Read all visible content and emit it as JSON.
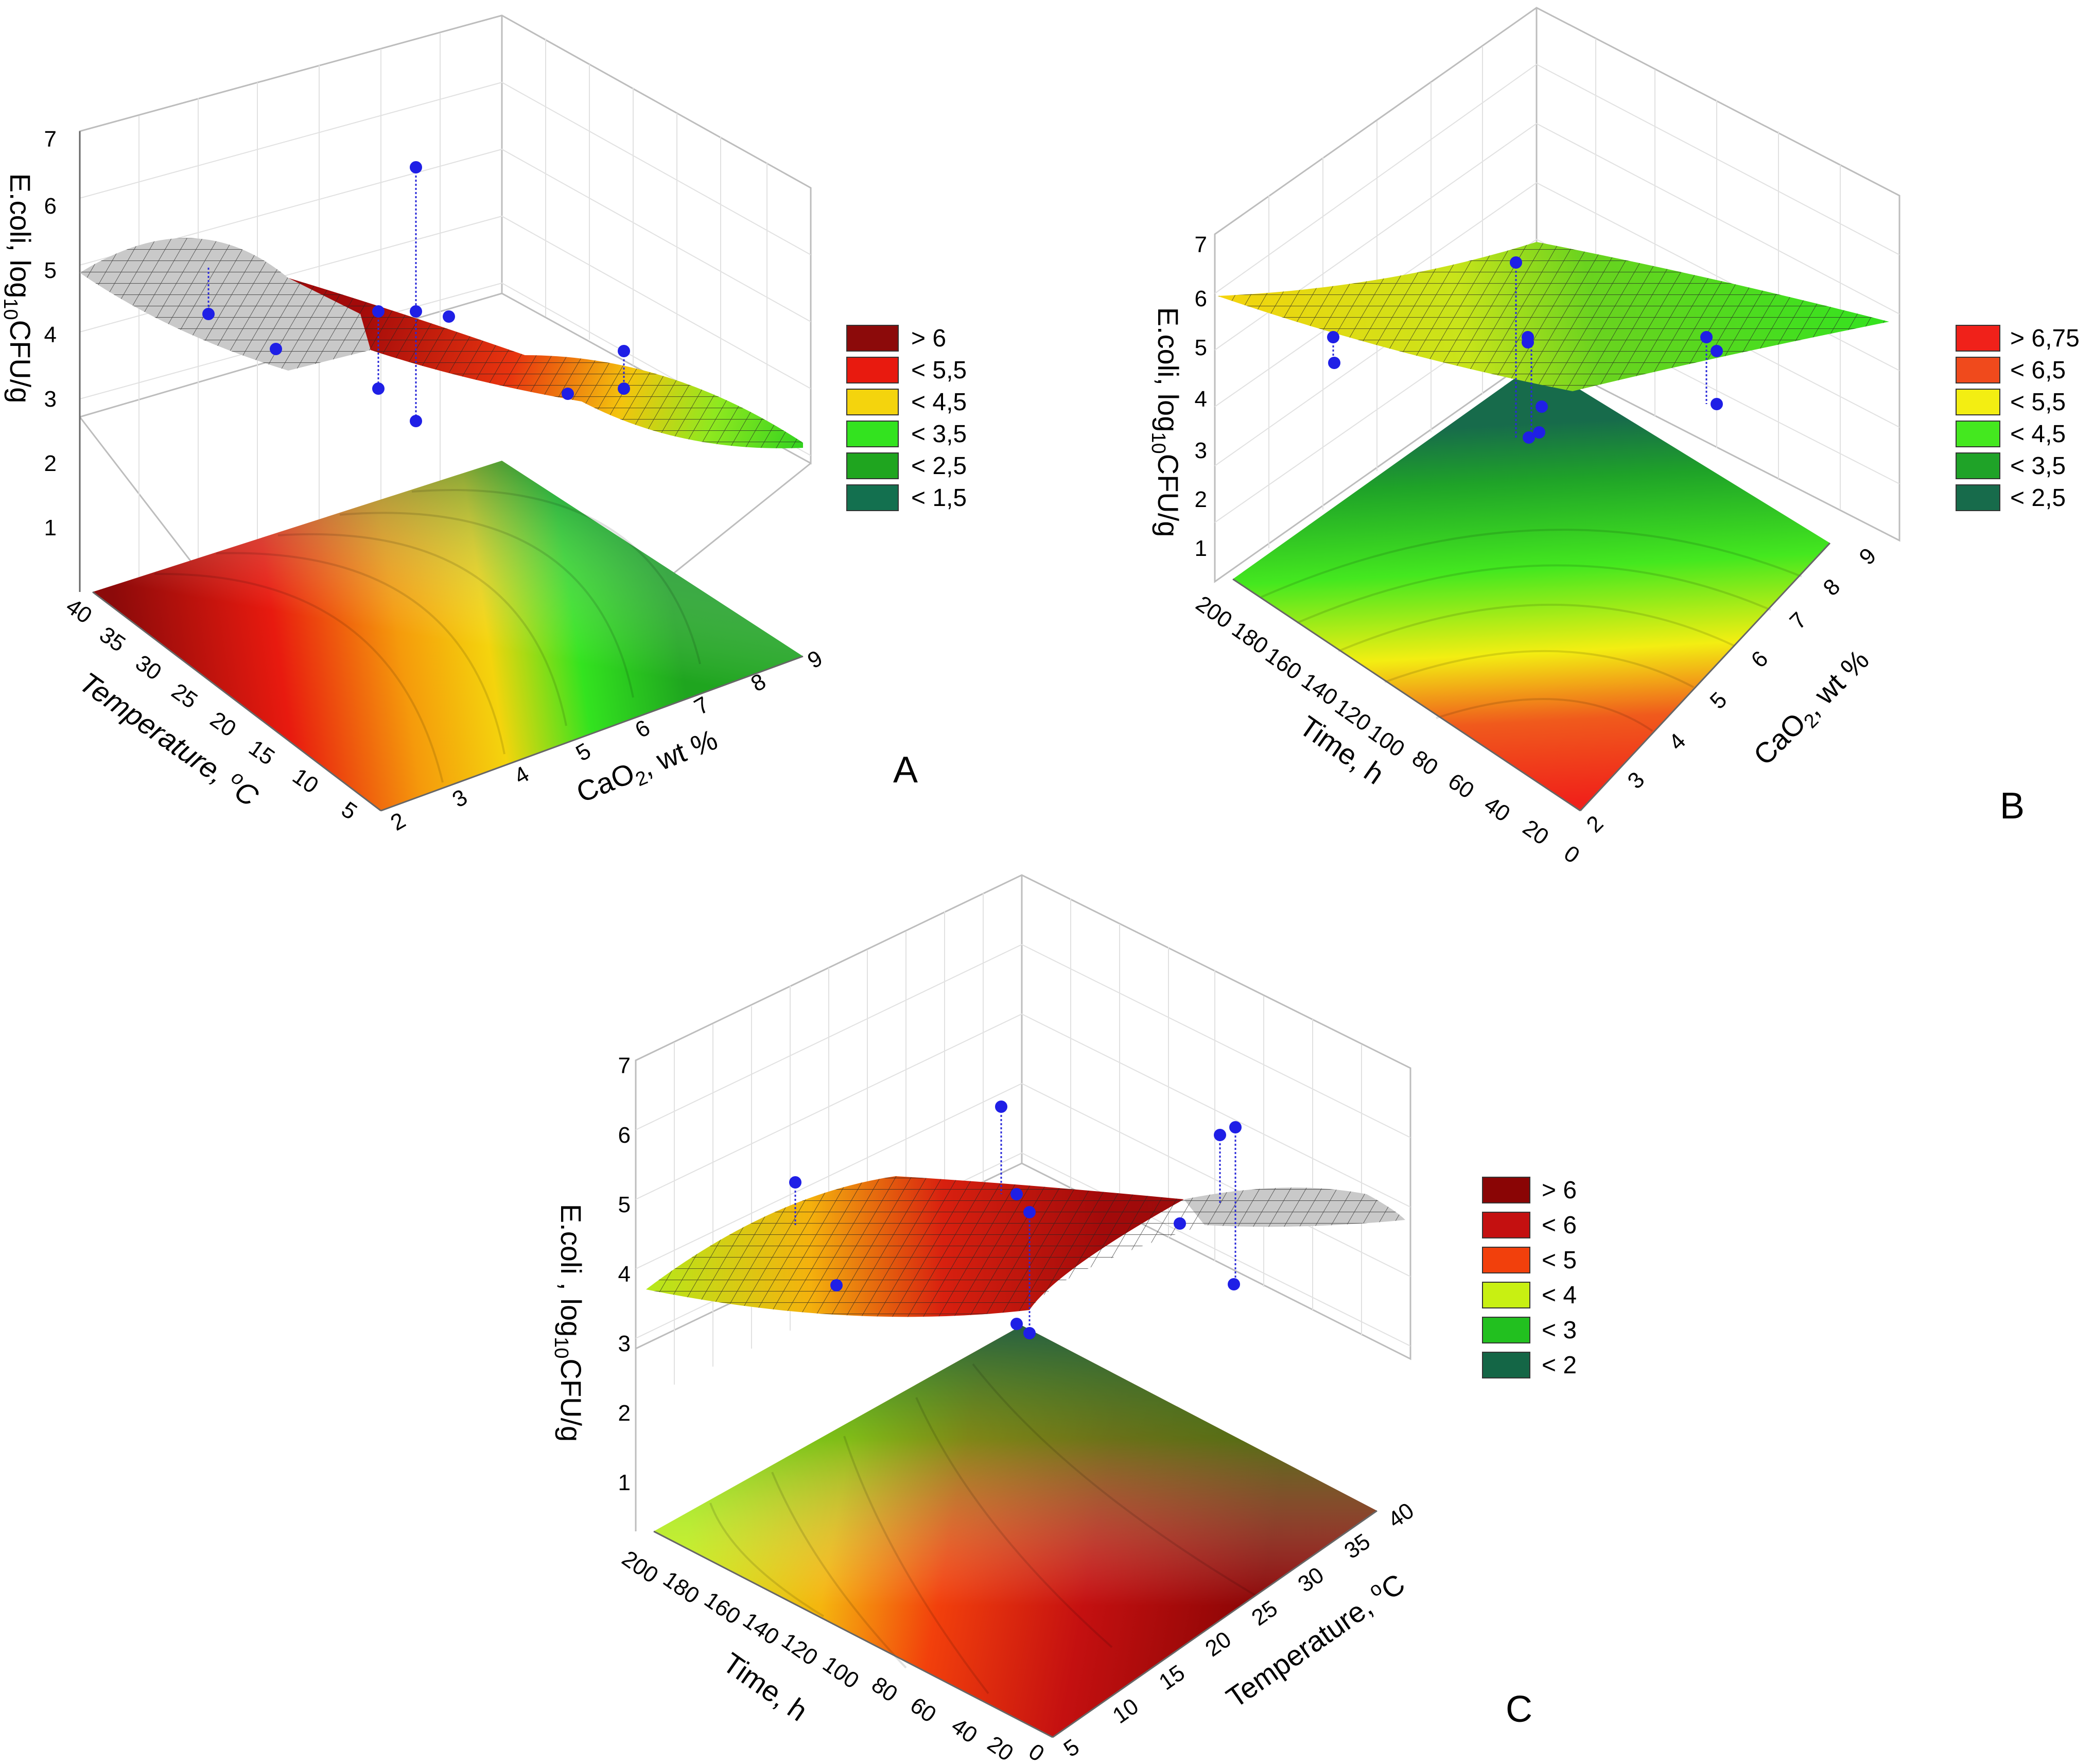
{
  "figure": {
    "panels": [
      "A",
      "B",
      "C"
    ]
  },
  "chart_data": [
    {
      "panel": "A",
      "type": "surface3d",
      "zlabel": "E.coli, log10CFU/g",
      "zlabel_parts": [
        "E.coli, log",
        "10",
        "CFU/g"
      ],
      "xlabel": "Temperature, °C",
      "xlabel_parts": [
        "Temperature, ",
        "o",
        "C"
      ],
      "ylabel": "CaO2, wt %",
      "ylabel_parts": [
        "CaO",
        "2",
        ", wt %"
      ],
      "z_ticks": [
        "1",
        "2",
        "3",
        "4",
        "5",
        "6",
        "7"
      ],
      "x_ticks": [
        "40",
        "35",
        "30",
        "25",
        "20",
        "15",
        "10",
        "5"
      ],
      "y_ticks": [
        "2",
        "3",
        "4",
        "5",
        "6",
        "7",
        "8",
        "9"
      ],
      "zlim": [
        0,
        7
      ],
      "xlim": [
        5,
        40
      ],
      "ylim": [
        2,
        9
      ],
      "legend": [
        {
          "label": "> 6",
          "color": "#8c0a0a"
        },
        {
          "label": "< 5,5",
          "color": "#e81a0f"
        },
        {
          "label": "< 4,5",
          "color": "#f4d40d"
        },
        {
          "label": "< 3,5",
          "color": "#33e31f"
        },
        {
          "label": "< 2,5",
          "color": "#1fa51f"
        },
        {
          "label": "< 1,5",
          "color": "#13704f"
        }
      ],
      "observed_points": [
        {
          "temperature": 40,
          "cao2": 2,
          "ecoli": 4.3
        },
        {
          "temperature": 30,
          "cao2": 2,
          "ecoli": 3.9
        },
        {
          "temperature": 25,
          "cao2": 5,
          "ecoli": 4.3
        },
        {
          "temperature": 25,
          "cao2": 5,
          "ecoli": 3.2
        },
        {
          "temperature": 22.5,
          "cao2": 5.5,
          "ecoli": 6.3
        },
        {
          "temperature": 22.5,
          "cao2": 5.5,
          "ecoli": 4.3
        },
        {
          "temperature": 22.5,
          "cao2": 5.5,
          "ecoli": 2.8
        },
        {
          "temperature": 20,
          "cao2": 6,
          "ecoli": 4.2
        },
        {
          "temperature": 10,
          "cao2": 8,
          "ecoli": 3.2
        },
        {
          "temperature": 8,
          "cao2": 9,
          "ecoli": 3.9
        },
        {
          "temperature": 8,
          "cao2": 9,
          "ecoli": 3.2
        }
      ]
    },
    {
      "panel": "B",
      "type": "surface3d",
      "zlabel": "E.coli, log10CFU/g",
      "zlabel_parts": [
        "E.coli, log",
        "10",
        "CFU/g"
      ],
      "xlabel": "Time, h",
      "xlabel_parts": [
        "Time, h"
      ],
      "ylabel": "CaO2, wt %",
      "ylabel_parts": [
        "CaO",
        "2",
        ", wt %"
      ],
      "z_ticks": [
        "1",
        "2",
        "3",
        "4",
        "5",
        "6",
        "7"
      ],
      "x_ticks": [
        "200",
        "180",
        "160",
        "140",
        "120",
        "100",
        "80",
        "60",
        "40",
        "20",
        "0"
      ],
      "y_ticks": [
        "2",
        "3",
        "4",
        "5",
        "6",
        "7",
        "8",
        "9"
      ],
      "zlim": [
        0,
        7
      ],
      "xlim": [
        0,
        200
      ],
      "ylim": [
        2,
        9
      ],
      "legend": [
        {
          "label": "> 6,75",
          "color": "#f0211a"
        },
        {
          "label": "< 6,5",
          "color": "#f04a1c"
        },
        {
          "label": "< 5,5",
          "color": "#f3ee12"
        },
        {
          "label": "< 4,5",
          "color": "#44e81f"
        },
        {
          "label": "< 3,5",
          "color": "#1fa328"
        },
        {
          "label": "< 2,5",
          "color": "#176b4b"
        }
      ],
      "observed_points": [
        {
          "time": 200,
          "cao2": 2,
          "ecoli": 5.3
        },
        {
          "time": 200,
          "cao2": 2,
          "ecoli": 4.8
        },
        {
          "time": 100,
          "cao2": 5.5,
          "ecoli": 6.2
        },
        {
          "time": 100,
          "cao2": 5.5,
          "ecoli": 5.3
        },
        {
          "time": 100,
          "cao2": 5.5,
          "ecoli": 5.2
        },
        {
          "time": 100,
          "cao2": 5.5,
          "ecoli": 3.9
        },
        {
          "time": 100,
          "cao2": 5.5,
          "ecoli": 3.3
        },
        {
          "time": 100,
          "cao2": 5.5,
          "ecoli": 3.2
        },
        {
          "time": 10,
          "cao2": 9,
          "ecoli": 5.4
        },
        {
          "time": 10,
          "cao2": 9,
          "ecoli": 5.1
        },
        {
          "time": 10,
          "cao2": 9,
          "ecoli": 4.1
        }
      ]
    },
    {
      "panel": "C",
      "type": "surface3d",
      "zlabel": "E.coli , log10CFU/g",
      "zlabel_parts": [
        "E.coli , log",
        "10",
        "CFU/g"
      ],
      "xlabel": "Time, h",
      "xlabel_parts": [
        "Time, h"
      ],
      "ylabel": "Temperature, °C",
      "ylabel_parts": [
        "Temperature, ",
        "o",
        "C"
      ],
      "z_ticks": [
        "1",
        "2",
        "3",
        "4",
        "5",
        "6",
        "7"
      ],
      "x_ticks": [
        "200",
        "180",
        "160",
        "140",
        "120",
        "100",
        "80",
        "60",
        "40",
        "20",
        "0"
      ],
      "y_ticks": [
        "5",
        "10",
        "15",
        "20",
        "25",
        "30",
        "35",
        "40"
      ],
      "zlim": [
        0,
        7
      ],
      "xlim": [
        0,
        200
      ],
      "ylim": [
        5,
        40
      ],
      "legend": [
        {
          "label": "> 6",
          "color": "#8a0505"
        },
        {
          "label": "< 6",
          "color": "#c41010"
        },
        {
          "label": "< 5",
          "color": "#f2400c"
        },
        {
          "label": "< 4",
          "color": "#c8f012"
        },
        {
          "label": "< 3",
          "color": "#22c01f"
        },
        {
          "label": "< 2",
          "color": "#146646"
        }
      ],
      "observed_points": [
        {
          "time": 200,
          "temperature": 5,
          "ecoli": 5.4
        },
        {
          "time": 150,
          "temperature": 5,
          "ecoli": 4.1
        },
        {
          "time": 100,
          "temperature": 22.5,
          "ecoli": 6.5
        },
        {
          "time": 100,
          "temperature": 22.5,
          "ecoli": 5.1
        },
        {
          "time": 100,
          "temperature": 22.5,
          "ecoli": 4.8
        },
        {
          "time": 100,
          "temperature": 22.5,
          "ecoli": 3.2
        },
        {
          "time": 100,
          "temperature": 22.5,
          "ecoli": 3.1
        },
        {
          "time": 40,
          "temperature": 32,
          "ecoli": 4.6
        },
        {
          "time": 10,
          "temperature": 40,
          "ecoli": 6.1
        },
        {
          "time": 10,
          "temperature": 40,
          "ecoli": 6.2
        },
        {
          "time": 10,
          "temperature": 40,
          "ecoli": 4.1
        }
      ]
    }
  ]
}
